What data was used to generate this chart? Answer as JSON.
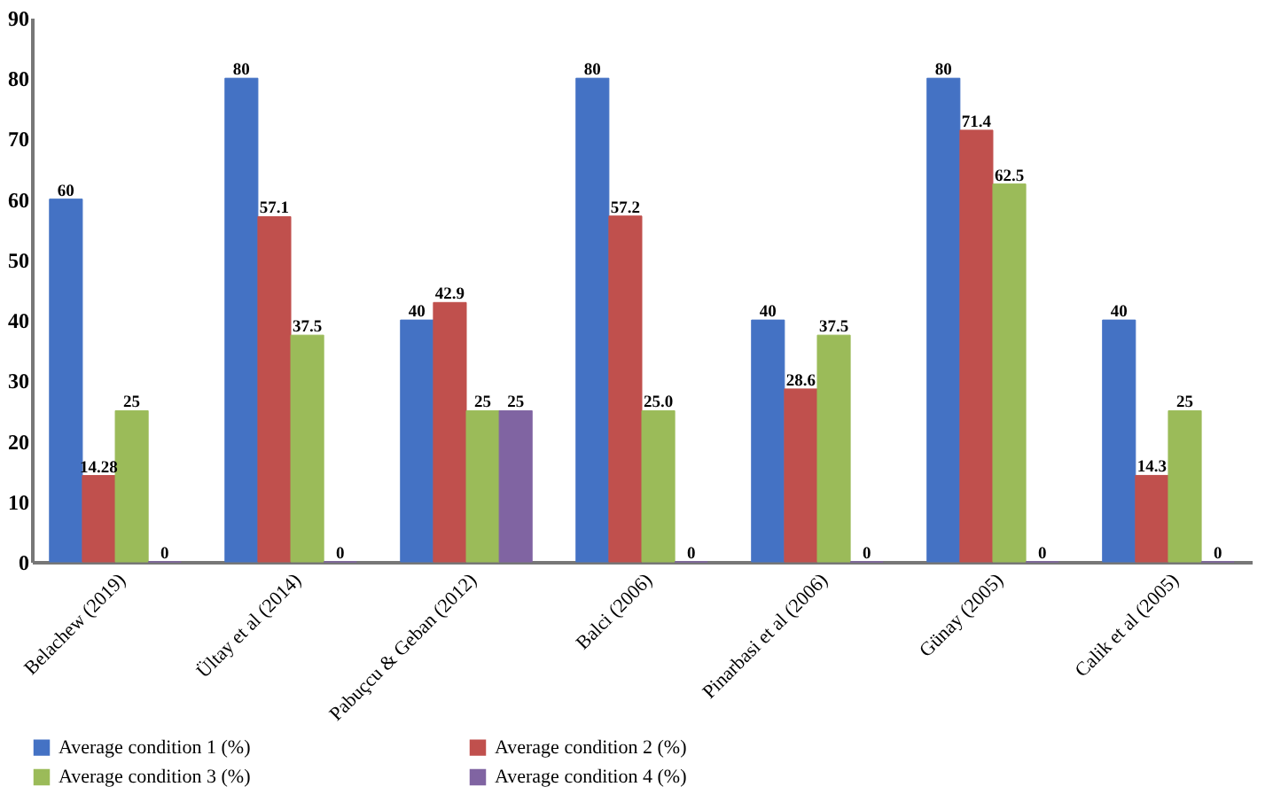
{
  "chart_data": {
    "type": "bar",
    "categories": [
      "Belachew (2019)",
      "Ültay et al (2014)",
      "Pabuçcu  & Geban (2012)",
      "Balci (2006)",
      "Pinarbasi et al (2006)",
      "Günay (2005)",
      "Calik et al (2005)"
    ],
    "series": [
      {
        "name": "Average condition 1 (%)",
        "color": "#4472c4",
        "values": [
          60,
          80,
          40,
          80,
          40,
          80,
          40
        ],
        "value_labels": [
          "60",
          "80",
          "40",
          "80",
          "40",
          "80",
          "40"
        ]
      },
      {
        "name": "Average condition 2 (%)",
        "color": "#c0504d",
        "values": [
          14.28,
          57.1,
          42.9,
          57.2,
          28.6,
          71.4,
          14.3
        ],
        "value_labels": [
          "14.28",
          "57.1",
          "42.9",
          "57.2",
          "28.6",
          "71.4",
          "14.3"
        ]
      },
      {
        "name": "Average condition 3 (%)",
        "color": "#9bbb59",
        "values": [
          25,
          37.5,
          25,
          25.0,
          37.5,
          62.5,
          25
        ],
        "value_labels": [
          "25",
          "37.5",
          "25",
          "25.0",
          "37.5",
          "62.5",
          "25"
        ]
      },
      {
        "name": "Average condition 4 (%)",
        "color": "#8064a2",
        "values": [
          0,
          0,
          25,
          0,
          0,
          0,
          0
        ],
        "value_labels": [
          "0",
          "0",
          "25",
          "0",
          "0",
          "0",
          "0"
        ]
      }
    ],
    "ylim": [
      0,
      90
    ],
    "yticks": [
      0,
      10,
      20,
      30,
      40,
      50,
      60,
      70,
      80,
      90
    ],
    "grid": false,
    "legend": "bottom"
  }
}
